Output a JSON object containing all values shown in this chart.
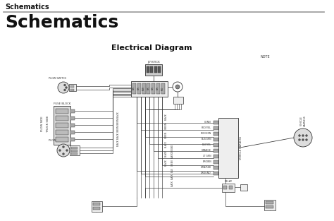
{
  "header_text": "Schematics",
  "title_text": "Schematics",
  "subtitle_text": "Electrical Diagram",
  "bg_color": "#ffffff",
  "header_font_size": 7,
  "title_font_size": 18,
  "subtitle_font_size": 8,
  "lc": "#333333",
  "header_line_color": "#999999",
  "note_text": "NOTE",
  "wire_labels_right": [
    "CONN",
    "RED/YEL",
    "RED/GRN",
    "BLK/GRN",
    "BLK/YEL",
    "ORANGE",
    "LT GRN",
    "BROWN",
    "GRN/RED",
    "GROUND"
  ],
  "wire_label_vertical": [
    "BLACK",
    "GREEN",
    "GREEN",
    "BLACK",
    "BLACK",
    "BLACK"
  ],
  "label_fuse_block": "FUSE BLOCK",
  "label_plow_side": "PLOW SIDE",
  "label_truck_side": "TRUCK SIDE",
  "label_vehicle": "VEHICLE HARNESS"
}
